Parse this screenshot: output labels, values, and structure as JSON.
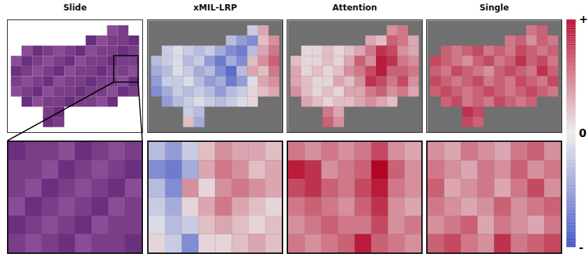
{
  "chart_data": {
    "type": "heatmap",
    "panels": [
      {
        "title": "Slide",
        "type": "image"
      },
      {
        "title": "xMIL-LRP",
        "cells": [
          [
            null,
            null,
            null,
            null,
            null,
            null,
            null,
            null,
            null,
            -0.2,
            0.3,
            null
          ],
          [
            null,
            null,
            null,
            null,
            null,
            null,
            null,
            -0.3,
            -0.5,
            -0.6,
            0.2,
            0.4
          ],
          [
            null,
            -0.2,
            -0.1,
            -0.2,
            -0.3,
            -0.2,
            -0.4,
            -0.6,
            -0.7,
            -0.3,
            0.3,
            0.5
          ],
          [
            -0.3,
            -0.2,
            -0.1,
            -0.3,
            -0.2,
            -0.5,
            -0.7,
            -0.4,
            -0.6,
            0.2,
            0.4,
            0.6
          ],
          [
            -0.4,
            -0.3,
            -0.1,
            -0.2,
            -0.4,
            -0.3,
            -0.6,
            -0.8,
            -0.3,
            0.3,
            0.2,
            0.5
          ],
          [
            -0.5,
            -0.2,
            -0.2,
            -0.1,
            -0.3,
            -0.5,
            -0.4,
            -0.7,
            -0.5,
            -0.1,
            0.3,
            0.4
          ],
          [
            -0.6,
            -0.4,
            -0.2,
            -0.3,
            -0.2,
            -0.3,
            -0.5,
            -0.3,
            -0.2,
            0.1,
            0.2,
            0.3
          ],
          [
            null,
            -0.5,
            -0.3,
            -0.2,
            -0.1,
            -0.2,
            -0.3,
            -0.2,
            -0.1,
            0.1,
            null,
            null
          ],
          [
            null,
            null,
            null,
            -0.2,
            -0.3,
            null,
            null,
            null,
            null,
            null,
            null,
            null
          ],
          [
            null,
            null,
            null,
            0.2,
            -0.4,
            null,
            null,
            null,
            null,
            null,
            null,
            null
          ]
        ],
        "zoom_cells": [
          [
            -0.3,
            -0.5,
            -0.2,
            0.2,
            0.4,
            0.3,
            0.3,
            0.2
          ],
          [
            -0.6,
            -0.7,
            -0.4,
            0.3,
            0.5,
            0.4,
            0.2,
            0.3
          ],
          [
            -0.3,
            -0.6,
            0.4,
            0.1,
            0.4,
            0.5,
            0.4,
            0.3
          ],
          [
            -0.2,
            -0.4,
            0.1,
            0.3,
            0.5,
            0.3,
            0.2,
            0.1
          ],
          [
            -0.1,
            -0.3,
            -0.2,
            0.2,
            0.3,
            0.2,
            0.1,
            0.2
          ],
          [
            0.1,
            -0.2,
            -0.6,
            0.1,
            0.1,
            0.2,
            0.3,
            0.2
          ]
        ]
      },
      {
        "title": "Attention",
        "cells": [
          [
            null,
            null,
            null,
            null,
            null,
            null,
            null,
            null,
            null,
            0.4,
            0.5,
            null
          ],
          [
            null,
            null,
            null,
            null,
            null,
            null,
            null,
            0.3,
            0.2,
            0.6,
            0.5,
            0.3
          ],
          [
            null,
            0.1,
            0.1,
            0.2,
            0.1,
            0.2,
            0.3,
            0.5,
            0.8,
            0.7,
            0.4,
            0.3
          ],
          [
            0.2,
            0.1,
            0.1,
            0.2,
            0.1,
            0.3,
            0.6,
            0.4,
            0.9,
            0.8,
            0.5,
            0.4
          ],
          [
            0.3,
            0.1,
            0.2,
            0.1,
            0.2,
            0.4,
            0.5,
            0.7,
            0.9,
            0.6,
            0.6,
            0.5
          ],
          [
            0.3,
            0.2,
            0.1,
            0.1,
            0.3,
            0.2,
            0.4,
            0.8,
            0.7,
            0.5,
            0.7,
            0.4
          ],
          [
            0.4,
            0.2,
            0.1,
            0.2,
            0.1,
            0.3,
            0.3,
            0.5,
            0.6,
            0.4,
            0.5,
            0.3
          ],
          [
            null,
            0.3,
            0.2,
            0.1,
            0.2,
            0.2,
            0.3,
            0.4,
            0.3,
            0.2,
            null,
            null
          ],
          [
            null,
            null,
            null,
            0.5,
            0.3,
            null,
            null,
            null,
            null,
            null,
            null,
            null
          ],
          [
            null,
            null,
            null,
            0.6,
            0.4,
            null,
            null,
            null,
            null,
            null,
            null,
            null
          ]
        ],
        "zoom_cells": [
          [
            0.5,
            0.4,
            0.5,
            0.4,
            0.5,
            0.7,
            0.4,
            0.3
          ],
          [
            0.9,
            0.8,
            0.4,
            0.5,
            0.6,
            1.0,
            0.6,
            0.4
          ],
          [
            0.7,
            0.8,
            0.6,
            0.5,
            0.7,
            0.9,
            0.5,
            0.4
          ],
          [
            0.5,
            0.6,
            0.5,
            0.4,
            0.6,
            0.8,
            0.4,
            0.3
          ],
          [
            0.4,
            0.5,
            0.6,
            0.5,
            0.5,
            0.7,
            0.4,
            0.5
          ],
          [
            0.5,
            0.4,
            0.5,
            0.6,
            0.9,
            0.6,
            0.5,
            0.4
          ]
        ]
      },
      {
        "title": "Single",
        "cells": [
          [
            null,
            null,
            null,
            null,
            null,
            null,
            null,
            null,
            null,
            0.5,
            0.6,
            null
          ],
          [
            null,
            null,
            null,
            null,
            null,
            null,
            null,
            0.5,
            0.6,
            0.4,
            0.6,
            0.5
          ],
          [
            null,
            0.6,
            0.5,
            0.6,
            0.7,
            0.5,
            0.6,
            0.5,
            0.7,
            0.6,
            0.5,
            0.6
          ],
          [
            0.7,
            0.6,
            0.5,
            0.4,
            0.6,
            0.7,
            0.5,
            0.6,
            0.8,
            0.6,
            0.7,
            0.5
          ],
          [
            0.6,
            0.5,
            0.7,
            0.6,
            0.5,
            0.4,
            0.6,
            0.7,
            0.6,
            0.5,
            0.8,
            0.6
          ],
          [
            0.7,
            0.6,
            0.5,
            0.6,
            0.7,
            0.5,
            0.6,
            0.5,
            0.7,
            0.6,
            0.5,
            0.7
          ],
          [
            0.6,
            0.7,
            0.6,
            0.5,
            0.6,
            0.7,
            0.6,
            0.5,
            0.6,
            0.7,
            0.6,
            0.5
          ],
          [
            null,
            0.6,
            0.7,
            0.5,
            0.6,
            0.5,
            0.7,
            0.6,
            0.5,
            0.6,
            null,
            null
          ],
          [
            null,
            null,
            null,
            0.8,
            0.7,
            null,
            null,
            null,
            null,
            null,
            null,
            null
          ],
          [
            null,
            null,
            null,
            0.7,
            0.6,
            null,
            null,
            null,
            null,
            null,
            null,
            null
          ]
        ],
        "zoom_cells": [
          [
            0.4,
            0.3,
            0.5,
            0.4,
            0.3,
            0.5,
            0.6,
            0.4
          ],
          [
            0.5,
            0.4,
            0.3,
            0.5,
            0.4,
            0.6,
            0.4,
            0.5
          ],
          [
            0.6,
            0.3,
            0.4,
            0.5,
            0.3,
            0.5,
            0.7,
            0.4
          ],
          [
            0.5,
            0.4,
            0.3,
            0.4,
            0.6,
            0.4,
            0.5,
            0.6
          ],
          [
            0.4,
            0.5,
            0.6,
            0.3,
            0.5,
            0.4,
            0.3,
            0.5
          ],
          [
            0.6,
            0.7,
            0.5,
            0.4,
            0.8,
            0.5,
            0.6,
            0.7
          ]
        ]
      }
    ],
    "colors": [
      "#3a4cc0",
      "#ececec",
      "#b40426"
    ],
    "color_range": [
      -1,
      1
    ],
    "color_ticks": [
      {
        "value": 1,
        "label": "+"
      },
      {
        "value": 0,
        "label": "0"
      },
      {
        "value": -1,
        "label": "-"
      }
    ]
  }
}
